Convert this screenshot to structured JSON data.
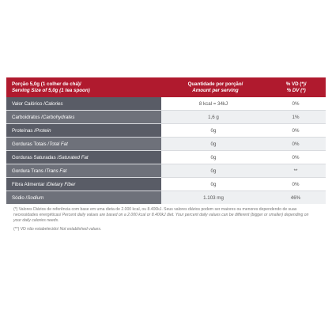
{
  "header": {
    "col1_pt": "Porção 5,0g (1 colher de chá)/",
    "col1_en": "Serving Size of 5,0g (1 tea spoon)",
    "col2_pt": "Quantidade por porção/",
    "col2_en": "Amount per serving",
    "col3_pt": "% VD (*)/",
    "col3_en": "% DV (*)"
  },
  "rows": [
    {
      "pt": "Valor Calórico / ",
      "en": "Calories",
      "amount": "8 kcal = 34kJ",
      "dv": "0%"
    },
    {
      "pt": "Carboidratos / ",
      "en": "Carbohydrates",
      "amount": "1,6 g",
      "dv": "1%"
    },
    {
      "pt": "Proteínas / ",
      "en": "Protein",
      "amount": "0g",
      "dv": "0%"
    },
    {
      "pt": "Gorduras Totais / ",
      "en": "Total Fat",
      "amount": "0g",
      "dv": "0%"
    },
    {
      "pt": "Gorduras Saturadas / ",
      "en": "Saturated Fat",
      "amount": "0g",
      "dv": "0%"
    },
    {
      "pt": "Gordura Trans / ",
      "en": "Trans Fat",
      "amount": "0g",
      "dv": "**"
    },
    {
      "pt": "Fibra Alimentar / ",
      "en": "Dietary Fiber",
      "amount": "0g",
      "dv": "0%"
    },
    {
      "pt": "Sódio / ",
      "en": "Sodium",
      "amount": "1.103 mg",
      "dv": "46%"
    }
  ],
  "notes": {
    "note1_pt": "(*) Valores Diários de referência com base em uma dieta de 2.000 kcal, ou 8.400kJ. Seus valores diários podem ser maiores ou menores dependendo de suas necessidades energéticas/",
    "note1_en": " Percent daily values are based on a 2.000 kcal or 8.400kJ diet. Your percent daily values can be different (bigger or smaller) depending on your daily calories needs.",
    "note2_pt": "(**) VD não estabelecido/",
    "note2_en": " Not established values."
  }
}
